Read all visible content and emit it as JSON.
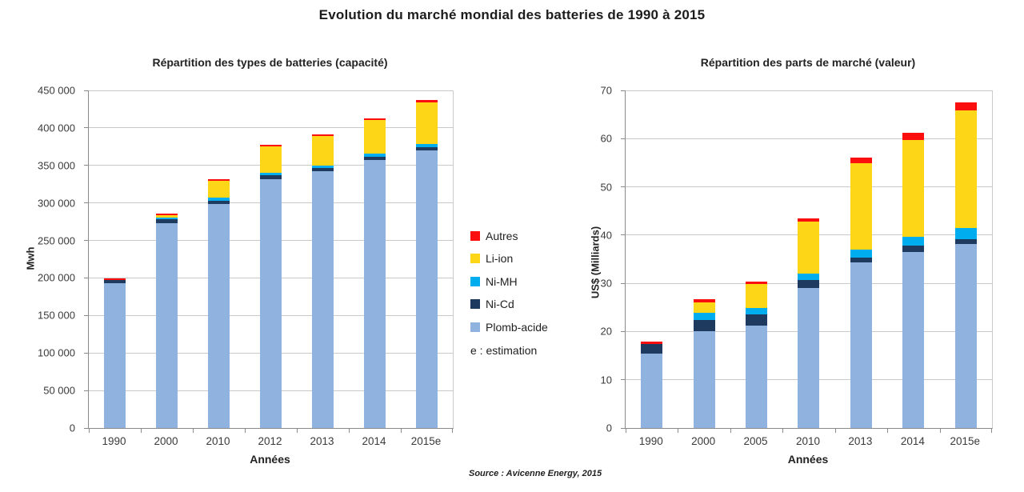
{
  "page_title": "Evolution du marché mondial des batteries de 1990 à 2015",
  "source": "Source : Avicenne Energy, 2015",
  "colors": {
    "plomb_acide": "#8fb2de",
    "ni_cd": "#1e3a5f",
    "ni_mh": "#00aeef",
    "li_ion": "#fdd617",
    "autres": "#fb0e0e",
    "gridline": "#c9c9c9",
    "axis": "#8a8a8a"
  },
  "legend": {
    "items": [
      {
        "label": "Autres",
        "color": "#fb0e0e"
      },
      {
        "label": "Li-ion",
        "color": "#fdd617"
      },
      {
        "label": "Ni-MH",
        "color": "#00aeef"
      },
      {
        "label": "Ni-Cd",
        "color": "#1e3a5f"
      },
      {
        "label": "Plomb-acide",
        "color": "#8fb2de"
      }
    ],
    "note": "e : estimation"
  },
  "chart_data": [
    {
      "type": "bar",
      "stacked": true,
      "title": "Répartition des types de batteries (capacité)",
      "xlabel": "Années",
      "ylabel": "Mwh",
      "ylim": [
        0,
        450000
      ],
      "ytick_step": 50000,
      "ytick_labels": [
        "0",
        "50 000",
        "100 000",
        "150 000",
        "200 000",
        "250 000",
        "300 000",
        "350 000",
        "400 000",
        "450 000"
      ],
      "grid": true,
      "legend_position": "right-of-chart",
      "categories": [
        "1990",
        "2000",
        "2010",
        "2012",
        "2013",
        "2014",
        "2015e"
      ],
      "series": [
        {
          "name": "Plomb-acide",
          "color": "#8fb2de",
          "values": [
            192500,
            273500,
            298500,
            332000,
            342000,
            357500,
            370500
          ]
        },
        {
          "name": "Ni-Cd",
          "color": "#1e3a5f",
          "values": [
            4500,
            4500,
            4500,
            4500,
            4500,
            4500,
            3500
          ]
        },
        {
          "name": "Ni-MH",
          "color": "#00aeef",
          "values": [
            0,
            3000,
            4500,
            4000,
            3500,
            3500,
            5000
          ]
        },
        {
          "name": "Li-ion",
          "color": "#fdd617",
          "values": [
            0,
            3000,
            22500,
            35000,
            39500,
            45000,
            55000
          ]
        },
        {
          "name": "Autres",
          "color": "#fb0e0e",
          "values": [
            2000,
            2000,
            2000,
            2000,
            2000,
            2500,
            3000
          ]
        }
      ],
      "totals": [
        199000,
        286000,
        332000,
        377500,
        391500,
        413000,
        437000
      ]
    },
    {
      "type": "bar",
      "stacked": true,
      "title": "Répartition des parts de marché (valeur)",
      "xlabel": "Années",
      "ylabel": "US$ (Milliards)",
      "ylim": [
        0,
        70
      ],
      "ytick_step": 10,
      "ytick_labels": [
        "0",
        "10",
        "20",
        "30",
        "40",
        "50",
        "60",
        "70"
      ],
      "grid": true,
      "categories": [
        "1990",
        "2000",
        "2005",
        "2010",
        "2013",
        "2014",
        "2015e"
      ],
      "series": [
        {
          "name": "Plomb-acide",
          "color": "#8fb2de",
          "values": [
            15.5,
            20.0,
            21.3,
            29.0,
            34.3,
            36.5,
            38.1
          ]
        },
        {
          "name": "Ni-Cd",
          "color": "#1e3a5f",
          "values": [
            2.0,
            2.4,
            2.2,
            1.7,
            1.0,
            1.4,
            1.1
          ]
        },
        {
          "name": "Ni-MH",
          "color": "#00aeef",
          "values": [
            0,
            1.5,
            1.4,
            1.3,
            1.7,
            1.8,
            2.3
          ]
        },
        {
          "name": "Li-ion",
          "color": "#fdd617",
          "values": [
            0,
            2.2,
            4.9,
            10.8,
            17.9,
            20.0,
            24.4
          ]
        },
        {
          "name": "Autres",
          "color": "#fb0e0e",
          "values": [
            0.4,
            0.6,
            0.6,
            0.6,
            1.1,
            1.5,
            1.6
          ]
        }
      ],
      "totals": [
        17.9,
        26.7,
        30.4,
        43.4,
        56.0,
        61.2,
        67.5
      ]
    }
  ]
}
